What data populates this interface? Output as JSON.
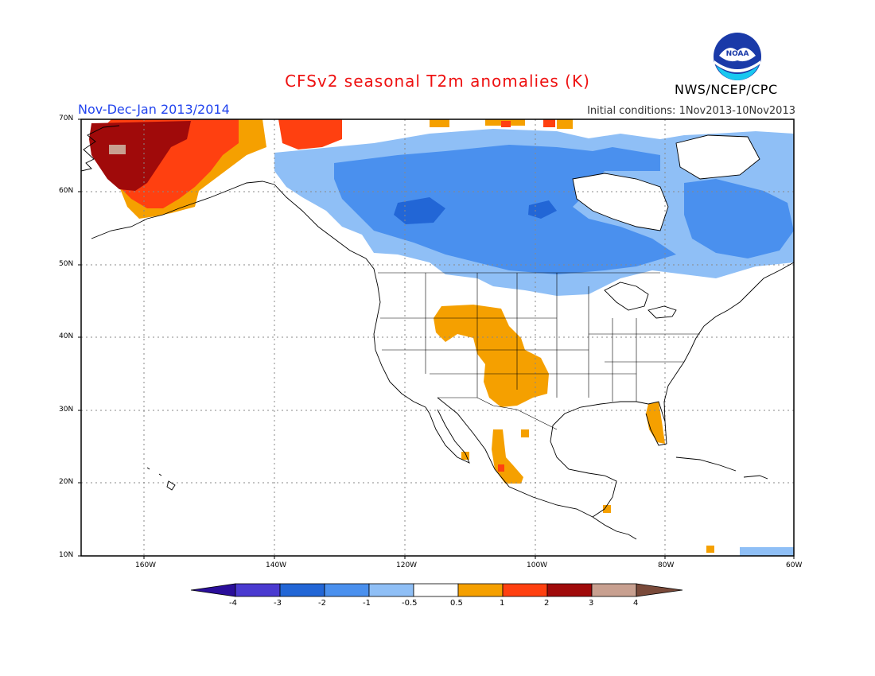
{
  "header": {
    "title": "CFSv2 seasonal T2m anomalies (K)",
    "period": "Nov-Dec-Jan 2013/2014",
    "initial_conditions": "Initial conditions: 1Nov2013-10Nov2013",
    "organization": "NWS/NCEP/CPC",
    "logo_text": "NOAA"
  },
  "axes": {
    "lat_labels": [
      "70N",
      "60N",
      "50N",
      "40N",
      "30N",
      "20N",
      "10N"
    ],
    "lon_labels": [
      "160W",
      "140W",
      "120W",
      "100W",
      "80W",
      "60W"
    ]
  },
  "colorbar": {
    "labels": [
      "-4",
      "-3",
      "-2",
      "-1",
      "-0.5",
      "0.5",
      "1",
      "2",
      "3",
      "4"
    ],
    "colors": [
      "#2a0e9a",
      "#4a3ad0",
      "#2266d6",
      "#4a90ee",
      "#8fbff6",
      "#ffffff",
      "#f5a000",
      "#ff4010",
      "#a00a0a",
      "#c8a090",
      "#7a4a3a"
    ]
  },
  "colors": {
    "frame": "#000000",
    "grid": "#888888",
    "coast": "#000000"
  }
}
